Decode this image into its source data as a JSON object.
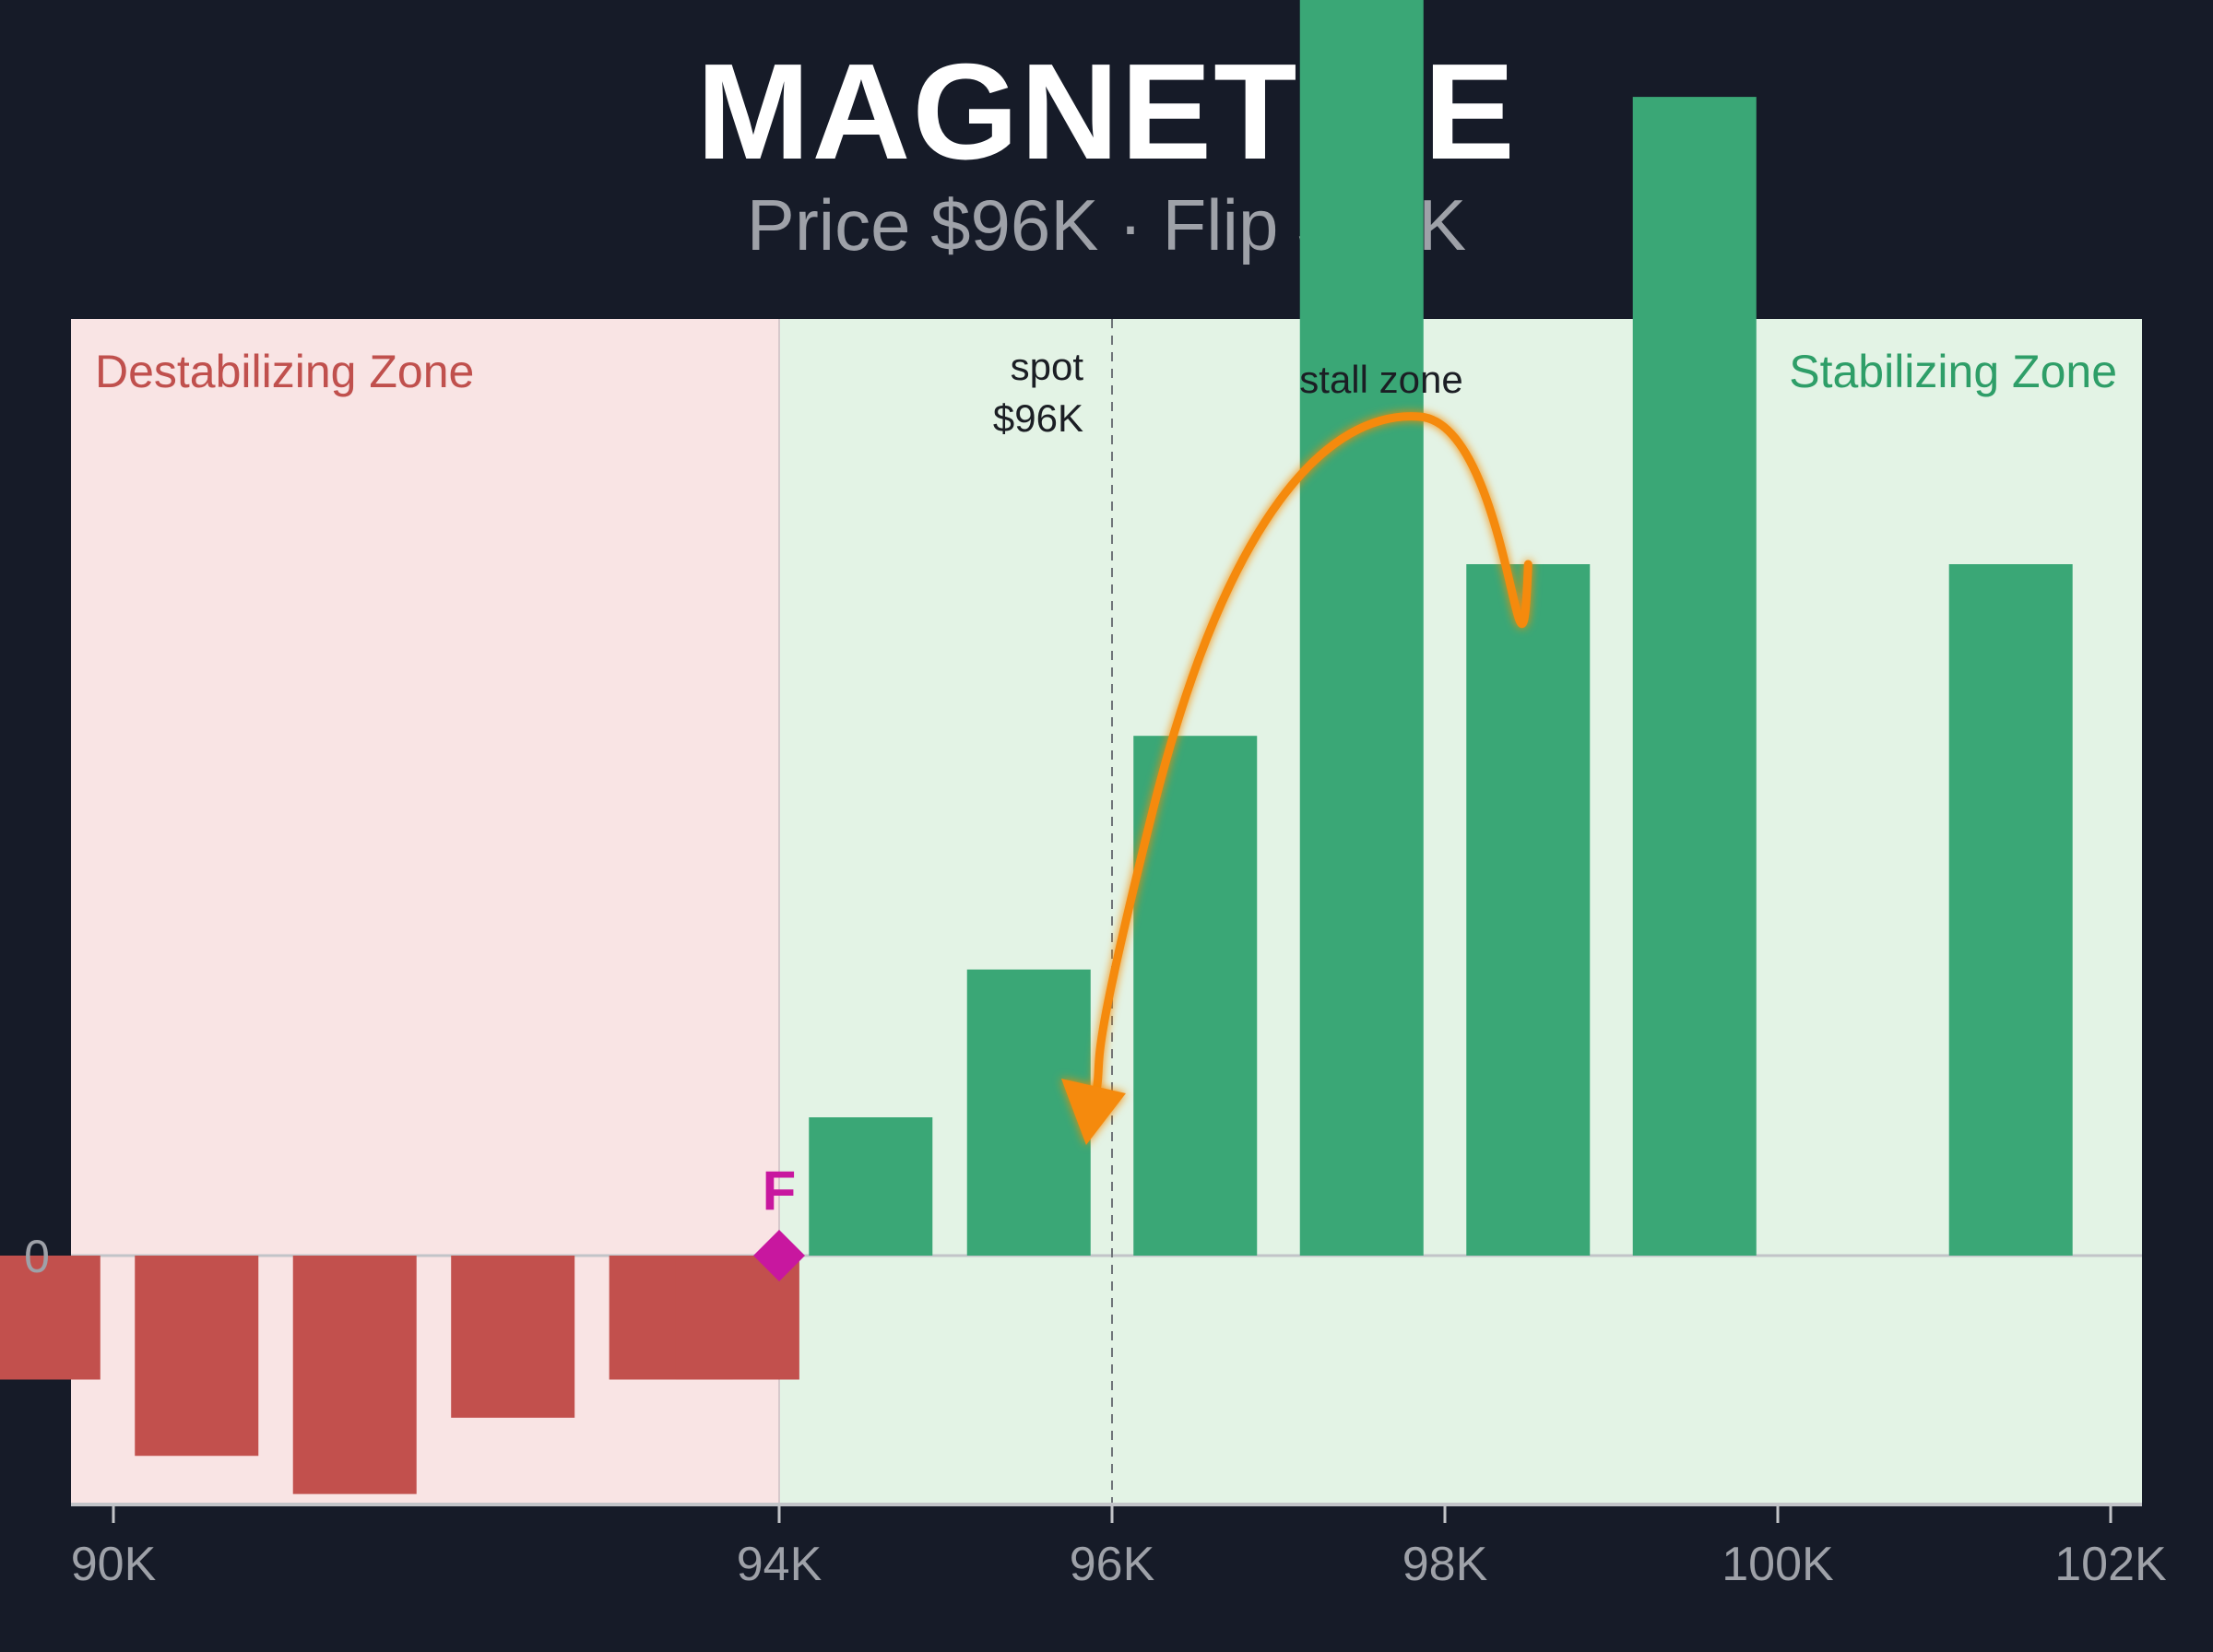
{
  "header": {
    "title": "MAGNETIZE",
    "subtitle": "Price $96K · Flip $94K"
  },
  "colors": {
    "background": "#161b28",
    "destabilizing_zone": "#f9e4e4",
    "stabilizing_zone": "#e3f3e5",
    "negative_bar": "#c2504d",
    "positive_bar": "#3aa776",
    "arrow": "#f58a0f",
    "flip_marker": "#c8179f",
    "destabilizing_label": "#c0504d",
    "stabilizing_label": "#2e9e68"
  },
  "chart_data": {
    "type": "bar",
    "x_unit": "K",
    "categories_x": [
      89.55,
      90.5,
      91.45,
      92.4,
      93.35,
      93.75,
      94.55,
      95.5,
      96.5,
      97.5,
      98.5,
      99.5,
      101.4
    ],
    "values": [
      -0.26,
      -0.42,
      -0.5,
      -0.34,
      -0.26,
      -0.26,
      0.29,
      0.6,
      1.09,
      3.7,
      1.45,
      2.43,
      1.45
    ],
    "zero_label": "0",
    "x_ticks": [
      {
        "value": 90,
        "label": "90K"
      },
      {
        "value": 94,
        "label": "94K"
      },
      {
        "value": 96,
        "label": "96K"
      },
      {
        "value": 98,
        "label": "98K"
      },
      {
        "value": 100,
        "label": "100K"
      },
      {
        "value": 102,
        "label": "102K"
      }
    ],
    "zones": [
      {
        "name": "Destabilizing Zone",
        "from": "left edge",
        "to": 94
      },
      {
        "name": "Stabilizing Zone",
        "from": 94,
        "to": "right edge"
      }
    ],
    "flip": {
      "x": 94,
      "label": "F"
    },
    "spot": {
      "x": 96,
      "label_line1": "spot",
      "label_line2": "$96K"
    },
    "annotation": {
      "text": "stall zone",
      "arrow_from_x": 98.5,
      "arrow_to_x": 95.9
    },
    "ylim": [
      -1.0,
      4.5
    ],
    "xlim": [
      89.15,
      102.95
    ]
  }
}
